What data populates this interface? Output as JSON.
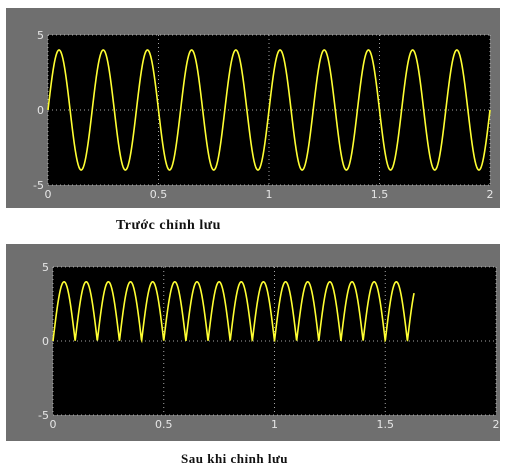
{
  "colors": {
    "frame": "#6f6f6f",
    "plot_background": "#000000",
    "trace": "#ffff33",
    "grid": "#d0d0d0",
    "tick_text": "#e6e6e6"
  },
  "captions": {
    "top": "Trước chỉnh lưu",
    "bottom": "Sau khi chỉnh lưu"
  },
  "chart_data": [
    {
      "type": "line",
      "title": "Trước chỉnh lưu",
      "xlabel": "",
      "ylabel": "",
      "xlim": [
        0,
        2
      ],
      "ylim": [
        -5,
        5
      ],
      "x_ticks": [
        "0",
        "0.5",
        "1",
        "1.5",
        "2"
      ],
      "y_ticks": [
        "5",
        "0",
        "-5"
      ],
      "grid": "dotted, on",
      "series": [
        {
          "signal": "sine",
          "amplitude": 4,
          "cycles_per_unit": 5,
          "x_start": 0,
          "x_end": 2
        }
      ]
    },
    {
      "type": "line",
      "title": "Sau khi chỉnh lưu",
      "xlabel": "",
      "ylabel": "",
      "xlim": [
        0,
        2
      ],
      "ylim": [
        -5,
        5
      ],
      "x_ticks": [
        "0",
        "0.5",
        "1",
        "1.5",
        "2"
      ],
      "y_ticks": [
        "5",
        "0",
        "-5"
      ],
      "grid": "dotted, on",
      "series": [
        {
          "signal": "full-wave rectified sine",
          "amplitude": 4,
          "cycles_per_unit": 5,
          "x_start": 0,
          "x_end": 1.63
        }
      ]
    }
  ]
}
